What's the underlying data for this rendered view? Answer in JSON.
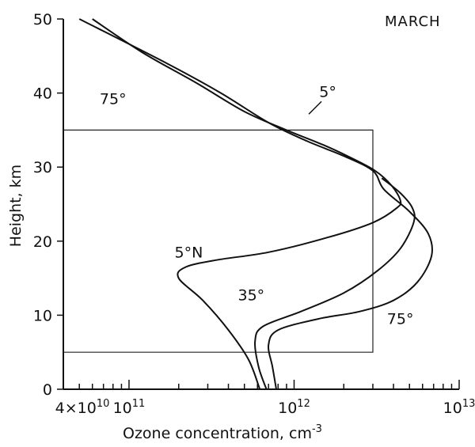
{
  "chart_data": {
    "type": "line",
    "title": "MARCH",
    "xlabel": "Ozone concentration, cm",
    "xlabel_exponent": "-3",
    "ylabel": "Height, km",
    "xscale": "log",
    "xlim": [
      40000000000.0,
      10000000000000.0
    ],
    "ylim": [
      0,
      50
    ],
    "x_tick_labels": [
      {
        "value": 40000000000.0,
        "mantissa": "4",
        "times": "×",
        "base": "10",
        "exp": "10"
      },
      {
        "value": 100000000000.0,
        "mantissa": "",
        "times": "",
        "base": "10",
        "exp": "11"
      },
      {
        "value": 1000000000000.0,
        "mantissa": "",
        "times": "",
        "base": "10",
        "exp": "12"
      },
      {
        "value": 10000000000000.0,
        "mantissa": "",
        "times": "",
        "base": "10",
        "exp": "13"
      }
    ],
    "y_ticks": [
      "0",
      "10",
      "20",
      "30",
      "40",
      "50"
    ],
    "series": [
      {
        "name": "5°N",
        "label_lines": [
          "5°N",
          "5°"
        ],
        "x": [
          620000000000.0,
          530000000000.0,
          400000000000.0,
          280000000000.0,
          200000000000.0,
          220000000000.0,
          350000000000.0,
          700000000000.0,
          1600000000000.0,
          3000000000000.0,
          4200000000000.0,
          4400000000000.0,
          3900000000000.0,
          3100000000000.0,
          2100000000000.0,
          1500000000000.0,
          900000000000.0,
          500000000000.0,
          250000000000.0,
          120000000000.0,
          60000000000.0
        ],
        "y": [
          0,
          4,
          8,
          12,
          15,
          16.5,
          17.5,
          18.5,
          20.5,
          22.5,
          24.5,
          25.5,
          27.5,
          29.5,
          31.5,
          33,
          35,
          37.5,
          41.5,
          45.5,
          50
        ]
      },
      {
        "name": "35°",
        "label_lines": [
          "35°"
        ],
        "x": [
          680000000000.0,
          610000000000.0,
          580000000000.0,
          650000000000.0,
          1100000000000.0,
          2000000000000.0,
          3200000000000.0,
          4400000000000.0,
          5300000000000.0,
          5200000000000.0,
          4400000000000.0,
          3400000000000.0
        ],
        "y": [
          0,
          3,
          6.5,
          8.5,
          10.5,
          13,
          16,
          19,
          22.5,
          24.5,
          26.5,
          28.5
        ]
      },
      {
        "name": "75°",
        "label_lines": [
          "75°",
          "75°"
        ],
        "x": [
          780000000000.0,
          740000000000.0,
          700000000000.0,
          800000000000.0,
          1400000000000.0,
          2500000000000.0,
          4000000000000.0,
          5600000000000.0,
          6800000000000.0,
          6500000000000.0,
          5000000000000.0,
          3500000000000.0,
          3000000000000.0,
          2000000000000.0,
          1200000000000.0,
          700000000000.0,
          360000000000.0,
          170000000000.0,
          50000000000.0
        ],
        "y": [
          0,
          3,
          6,
          8,
          9.5,
          10.5,
          12,
          14.5,
          18,
          21,
          24,
          27,
          29.5,
          31.5,
          33.5,
          36,
          40,
          44,
          50
        ]
      }
    ],
    "reference_box": {
      "x": [
        40000000000.0,
        3000000000000.0
      ],
      "y": [
        5,
        35
      ]
    },
    "curve_labels": [
      {
        "text": "75°",
        "x": 80000000000.0,
        "y": 38.5
      },
      {
        "text": "5°",
        "x": 1600000000000.0,
        "y": 39.5
      },
      {
        "text": "5°N",
        "x": 230000000000.0,
        "y": 17.8
      },
      {
        "text": "35°",
        "x": 550000000000.0,
        "y": 12.0
      },
      {
        "text": "75°",
        "x": 4400000000000.0,
        "y": 8.8
      }
    ]
  }
}
